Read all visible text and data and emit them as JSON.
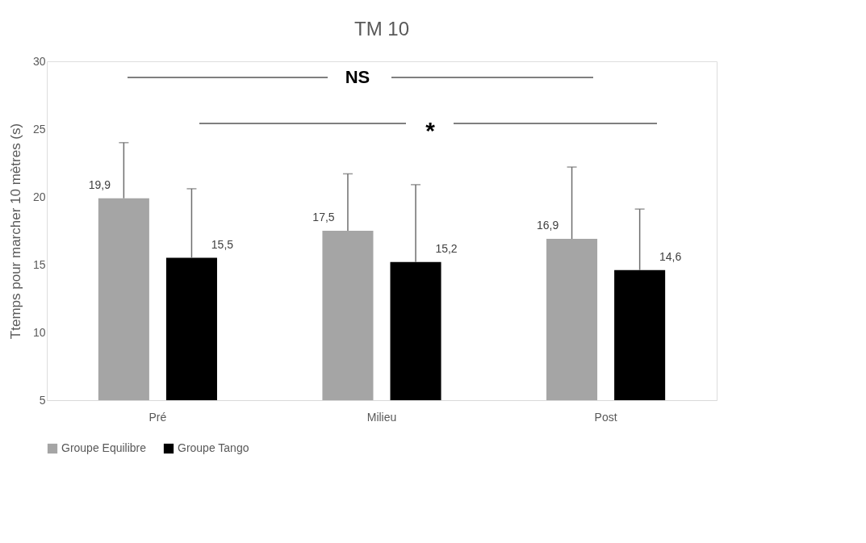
{
  "chart_data": {
    "type": "bar",
    "title": "TM 10",
    "ylabel": "Ttemps pour marcher 10 mètres (s)",
    "categories": [
      "Pré",
      "Milieu",
      "Post"
    ],
    "series": [
      {
        "name": "Groupe Equilibre",
        "color": "#a5a5a5",
        "values": [
          19.9,
          17.5,
          16.9
        ],
        "value_labels": [
          "19,9",
          "17,5",
          "16,9"
        ],
        "errors": [
          [
            19.9,
            24.0
          ],
          [
            17.5,
            21.7
          ],
          [
            16.9,
            22.2
          ]
        ]
      },
      {
        "name": "Groupe Tango",
        "color": "#000000",
        "values": [
          15.5,
          15.2,
          14.6
        ],
        "value_labels": [
          "15,5",
          "15,2",
          "14,6"
        ],
        "errors": [
          [
            15.5,
            20.6
          ],
          [
            15.2,
            20.9
          ],
          [
            14.6,
            19.1
          ]
        ]
      }
    ],
    "ylim": [
      5,
      30
    ],
    "yticks": [
      5,
      10,
      15,
      20,
      25,
      30
    ],
    "grid": false,
    "legend": "bottom",
    "annotations": [
      "NS",
      "*"
    ]
  }
}
